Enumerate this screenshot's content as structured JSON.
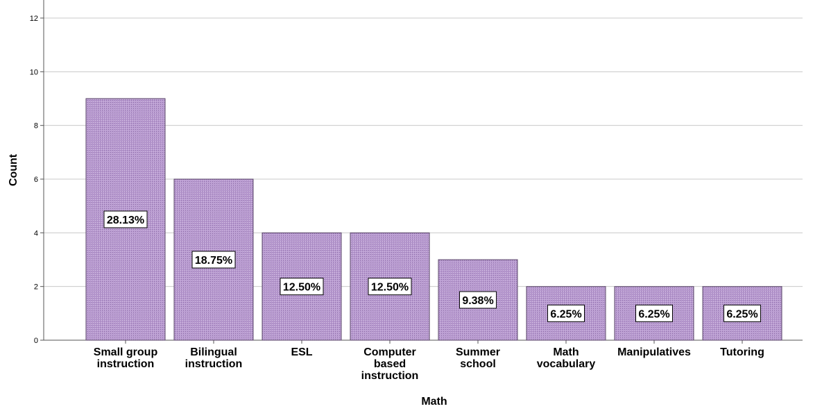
{
  "colors": {
    "bar_fill": "#b89ad0",
    "bar_stroke": "#5a4668",
    "grid": "#c8c8c8",
    "axis": "#555555",
    "label_box": "#ffffff"
  },
  "chart_data": {
    "type": "bar",
    "title": "",
    "xlabel": "Math",
    "ylabel": "Count",
    "ylim": [
      0,
      12
    ],
    "yticks": [
      0,
      2,
      4,
      6,
      8,
      10,
      12
    ],
    "grid": true,
    "categories": [
      [
        "Small group",
        "instruction"
      ],
      [
        "Bilingual",
        "instruction"
      ],
      [
        "ESL"
      ],
      [
        "Computer",
        "based",
        "instruction"
      ],
      [
        "Summer",
        "school"
      ],
      [
        "Math",
        "vocabulary"
      ],
      [
        "Manipulatives"
      ],
      [
        "Tutoring"
      ]
    ],
    "values": [
      9,
      6,
      4,
      4,
      3,
      2,
      2,
      2
    ],
    "data_labels": [
      "28.13%",
      "18.75%",
      "12.50%",
      "12.50%",
      "9.38%",
      "6.25%",
      "6.25%",
      "6.25%"
    ]
  }
}
